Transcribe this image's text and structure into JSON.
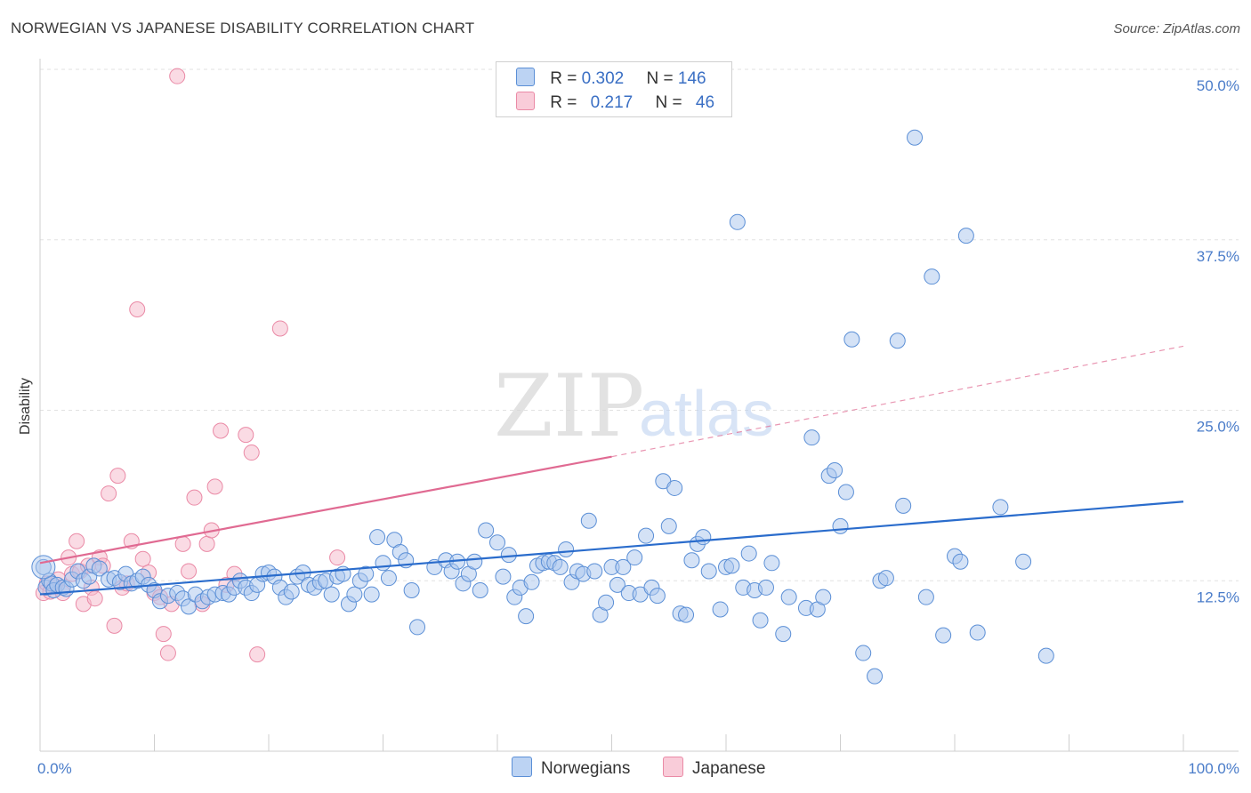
{
  "title": "NORWEGIAN VS JAPANESE DISABILITY CORRELATION CHART",
  "source": "Source: ZipAtlas.com",
  "watermark": {
    "zip": "ZIP",
    "atlas": "atlas"
  },
  "legend": {
    "rows": [
      {
        "r_label": "R = ",
        "r_value": "0.302",
        "n_label": "N = ",
        "n_value": "146",
        "color": "#a9c6ee"
      },
      {
        "r_label": "R = ",
        "r_value": "0.217",
        "n_label": "N = ",
        "n_value": "46",
        "color": "#f5b8ca"
      }
    ]
  },
  "chart_data": {
    "type": "scatter",
    "title": "NORWEGIAN VS JAPANESE DISABILITY CORRELATION CHART",
    "xlabel": "",
    "ylabel": "Disability",
    "xlim": [
      0,
      100
    ],
    "ylim": [
      0,
      50
    ],
    "x_tick_labels": [
      "0.0%",
      "100.0%"
    ],
    "y_ticks": [
      12.5,
      25.0,
      37.5,
      50.0
    ],
    "y_tick_labels": [
      "12.5%",
      "25.0%",
      "37.5%",
      "50.0%"
    ],
    "grid": "horizontal dashed",
    "legend_position": "top-center",
    "series": [
      {
        "name": "Norwegians",
        "color": "#5b8fd6",
        "fill": "#a9c6ee",
        "trend": {
          "x0": 0,
          "y0": 11.5,
          "x1": 100,
          "y1": 18.3,
          "style": "solid",
          "color": "#2a6ccc"
        },
        "points": [
          [
            0.3,
            13.5
          ],
          [
            0.5,
            12.0
          ],
          [
            0.8,
            12.5
          ],
          [
            1.0,
            12.3
          ],
          [
            1.2,
            11.8
          ],
          [
            1.5,
            12.2
          ],
          [
            2.0,
            12.0
          ],
          [
            2.3,
            11.9
          ],
          [
            2.8,
            12.6
          ],
          [
            3.3,
            13.2
          ],
          [
            3.8,
            12.5
          ],
          [
            4.3,
            12.8
          ],
          [
            4.7,
            13.6
          ],
          [
            5.2,
            13.4
          ],
          [
            6.0,
            12.6
          ],
          [
            6.5,
            12.7
          ],
          [
            7.0,
            12.4
          ],
          [
            7.5,
            13.0
          ],
          [
            8.0,
            12.3
          ],
          [
            8.5,
            12.5
          ],
          [
            9.0,
            12.8
          ],
          [
            9.5,
            12.2
          ],
          [
            10.0,
            11.8
          ],
          [
            10.5,
            11.0
          ],
          [
            11.2,
            11.4
          ],
          [
            12.0,
            11.6
          ],
          [
            12.5,
            11.2
          ],
          [
            13.0,
            10.6
          ],
          [
            13.6,
            11.5
          ],
          [
            14.2,
            11.0
          ],
          [
            14.7,
            11.3
          ],
          [
            15.3,
            11.5
          ],
          [
            16.0,
            11.6
          ],
          [
            16.5,
            11.5
          ],
          [
            17.0,
            12.0
          ],
          [
            17.5,
            12.5
          ],
          [
            18.0,
            12.0
          ],
          [
            18.5,
            11.6
          ],
          [
            19.0,
            12.2
          ],
          [
            19.5,
            13.0
          ],
          [
            20.0,
            13.1
          ],
          [
            20.5,
            12.8
          ],
          [
            21.0,
            12.0
          ],
          [
            21.5,
            11.3
          ],
          [
            22.0,
            11.7
          ],
          [
            22.5,
            12.8
          ],
          [
            23.0,
            13.1
          ],
          [
            23.5,
            12.2
          ],
          [
            24.0,
            12.0
          ],
          [
            24.5,
            12.4
          ],
          [
            25.0,
            12.5
          ],
          [
            25.5,
            11.5
          ],
          [
            26.0,
            12.8
          ],
          [
            26.5,
            13.0
          ],
          [
            27.0,
            10.8
          ],
          [
            27.5,
            11.5
          ],
          [
            28.0,
            12.5
          ],
          [
            28.5,
            13.0
          ],
          [
            29.0,
            11.5
          ],
          [
            29.5,
            15.7
          ],
          [
            30.0,
            13.8
          ],
          [
            30.5,
            12.7
          ],
          [
            31.0,
            15.5
          ],
          [
            31.5,
            14.6
          ],
          [
            32.0,
            14.0
          ],
          [
            32.5,
            11.8
          ],
          [
            33.0,
            9.1
          ],
          [
            34.5,
            13.5
          ],
          [
            35.5,
            14.0
          ],
          [
            36.0,
            13.2
          ],
          [
            36.5,
            13.9
          ],
          [
            37.0,
            12.3
          ],
          [
            37.5,
            13.0
          ],
          [
            38.0,
            13.9
          ],
          [
            38.5,
            11.8
          ],
          [
            39.0,
            16.2
          ],
          [
            40.0,
            15.3
          ],
          [
            40.5,
            12.8
          ],
          [
            41.0,
            14.4
          ],
          [
            41.5,
            11.3
          ],
          [
            42.0,
            12.0
          ],
          [
            42.5,
            9.9
          ],
          [
            43.0,
            12.4
          ],
          [
            43.5,
            13.6
          ],
          [
            44.0,
            13.8
          ],
          [
            44.5,
            13.9
          ],
          [
            45.0,
            13.8
          ],
          [
            45.5,
            13.5
          ],
          [
            46.0,
            14.8
          ],
          [
            46.5,
            12.4
          ],
          [
            47.0,
            13.2
          ],
          [
            47.5,
            13.0
          ],
          [
            48.0,
            16.9
          ],
          [
            48.5,
            13.2
          ],
          [
            49.0,
            10.0
          ],
          [
            49.5,
            10.9
          ],
          [
            50.0,
            13.5
          ],
          [
            50.5,
            12.2
          ],
          [
            51.0,
            13.5
          ],
          [
            51.5,
            11.6
          ],
          [
            52.0,
            14.2
          ],
          [
            52.5,
            11.5
          ],
          [
            53.0,
            15.8
          ],
          [
            53.5,
            12.0
          ],
          [
            54.0,
            11.4
          ],
          [
            54.5,
            19.8
          ],
          [
            55.0,
            16.5
          ],
          [
            55.5,
            19.3
          ],
          [
            56.0,
            10.1
          ],
          [
            56.5,
            10.0
          ],
          [
            57.0,
            14.0
          ],
          [
            57.5,
            15.2
          ],
          [
            58.0,
            15.7
          ],
          [
            58.5,
            13.2
          ],
          [
            59.5,
            10.4
          ],
          [
            60.0,
            13.5
          ],
          [
            60.5,
            13.6
          ],
          [
            61.0,
            38.8
          ],
          [
            61.5,
            12.0
          ],
          [
            62.0,
            14.5
          ],
          [
            62.5,
            11.8
          ],
          [
            63.0,
            9.6
          ],
          [
            63.5,
            12.0
          ],
          [
            64.0,
            13.8
          ],
          [
            65.0,
            8.6
          ],
          [
            65.5,
            11.3
          ],
          [
            67.0,
            10.5
          ],
          [
            67.5,
            23.0
          ],
          [
            68.0,
            10.4
          ],
          [
            68.5,
            11.3
          ],
          [
            69.0,
            20.2
          ],
          [
            69.5,
            20.6
          ],
          [
            70.0,
            16.5
          ],
          [
            70.5,
            19.0
          ],
          [
            71.0,
            30.2
          ],
          [
            72.0,
            7.2
          ],
          [
            73.0,
            5.5
          ],
          [
            73.5,
            12.5
          ],
          [
            74.0,
            12.7
          ],
          [
            75.0,
            30.1
          ],
          [
            75.5,
            18.0
          ],
          [
            76.5,
            45.0
          ],
          [
            77.5,
            11.3
          ],
          [
            78.0,
            34.8
          ],
          [
            79.0,
            8.5
          ],
          [
            80.0,
            14.3
          ],
          [
            80.5,
            13.9
          ],
          [
            81.0,
            37.8
          ],
          [
            82.0,
            8.7
          ],
          [
            84.0,
            17.9
          ],
          [
            86.0,
            13.9
          ],
          [
            88.0,
            7.0
          ]
        ]
      },
      {
        "name": "Japanese",
        "color": "#ea8aa6",
        "fill": "#f5b8ca",
        "trend": {
          "x0": 0,
          "y0": 13.8,
          "x1": 50,
          "y1": 21.6,
          "style": "solid",
          "x2": 100,
          "y2": 29.7,
          "color": "#e06a92"
        },
        "points": [
          [
            0.3,
            11.6
          ],
          [
            0.6,
            12.3
          ],
          [
            0.9,
            11.7
          ],
          [
            1.3,
            12.1
          ],
          [
            1.6,
            12.6
          ],
          [
            2.0,
            11.6
          ],
          [
            2.5,
            14.2
          ],
          [
            2.8,
            13.0
          ],
          [
            3.2,
            15.4
          ],
          [
            3.5,
            13.2
          ],
          [
            3.8,
            10.8
          ],
          [
            4.2,
            13.6
          ],
          [
            4.5,
            12.0
          ],
          [
            4.8,
            11.2
          ],
          [
            5.2,
            14.2
          ],
          [
            5.5,
            13.6
          ],
          [
            6.0,
            18.9
          ],
          [
            6.5,
            9.2
          ],
          [
            6.8,
            20.2
          ],
          [
            7.2,
            12.0
          ],
          [
            7.6,
            12.3
          ],
          [
            8.0,
            15.4
          ],
          [
            8.5,
            32.4
          ],
          [
            9.0,
            14.1
          ],
          [
            9.5,
            13.1
          ],
          [
            10.0,
            11.6
          ],
          [
            10.5,
            11.3
          ],
          [
            10.8,
            8.6
          ],
          [
            11.2,
            7.2
          ],
          [
            11.5,
            10.8
          ],
          [
            12.0,
            49.5
          ],
          [
            12.5,
            15.2
          ],
          [
            13.0,
            13.2
          ],
          [
            13.5,
            18.6
          ],
          [
            14.2,
            10.8
          ],
          [
            14.6,
            15.2
          ],
          [
            15.0,
            16.2
          ],
          [
            15.3,
            19.4
          ],
          [
            15.8,
            23.5
          ],
          [
            16.3,
            12.2
          ],
          [
            17.0,
            13.0
          ],
          [
            18.0,
            23.2
          ],
          [
            18.5,
            21.9
          ],
          [
            19.0,
            7.1
          ],
          [
            21.0,
            31.0
          ],
          [
            26.0,
            14.2
          ]
        ]
      }
    ]
  },
  "bottom_legend": [
    {
      "label": "Norwegians",
      "color": "#a9c6ee",
      "border": "#5b8fd6"
    },
    {
      "label": "Japanese",
      "color": "#f5b8ca",
      "border": "#ea8aa6"
    }
  ]
}
